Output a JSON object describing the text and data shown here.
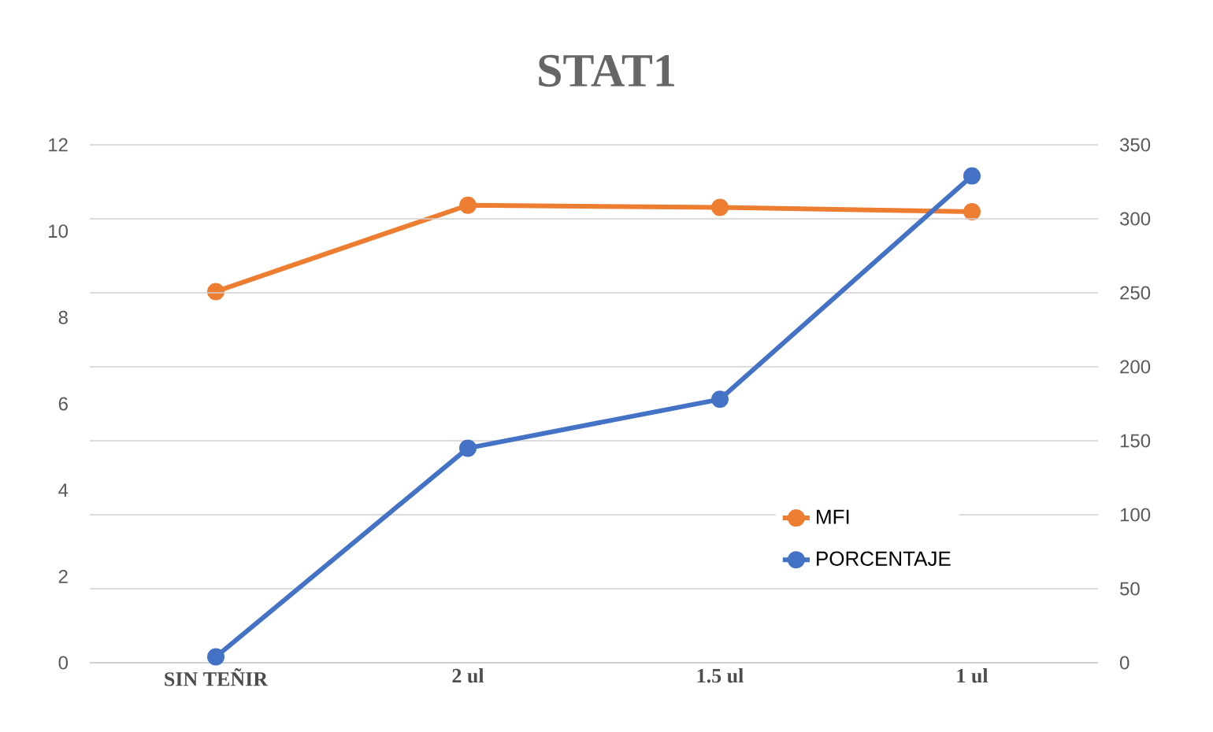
{
  "chart_data": {
    "type": "line",
    "title": "STAT1",
    "categories": [
      "SIN TEÑIR",
      "2 ul",
      "1.5 ul",
      "1 ul"
    ],
    "series": [
      {
        "name": "MFI",
        "color": "#ed7d31",
        "values": [
          8.6,
          10.6,
          10.55,
          10.45
        ]
      },
      {
        "name": "PORCENTAJE",
        "color": "#4472c4",
        "values": [
          4,
          145,
          178,
          329
        ],
        "axis": "y2"
      }
    ],
    "ylim": [
      0,
      12
    ],
    "yticks": [
      0,
      2,
      4,
      6,
      8,
      10,
      12
    ],
    "y2lim": [
      0,
      350
    ],
    "y2ticks": [
      0,
      50,
      100,
      150,
      200,
      250,
      300,
      350
    ],
    "grid": "y",
    "legend": "bottom right",
    "marker": "circle"
  }
}
